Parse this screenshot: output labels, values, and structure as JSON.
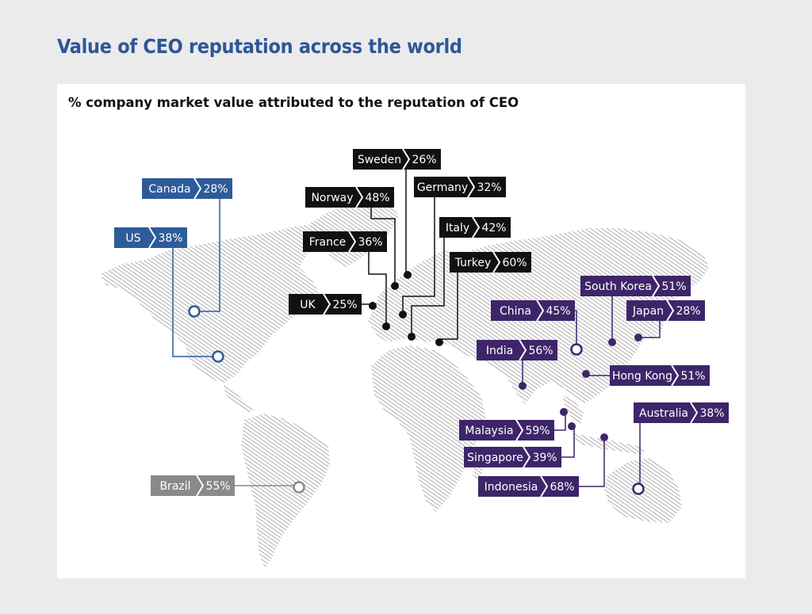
{
  "title": "Value of CEO reputation across the world",
  "subtitle": "% company market value attributed to the reputation of CEO",
  "colors": {
    "americas": "#2e5b9a",
    "europe": "#111111",
    "asia_pacific": "#3e2569",
    "latin_america": "#8a8a8a",
    "land_hatch": "#9a9a9a"
  },
  "countries": [
    {
      "id": "canada",
      "name": "Canada",
      "value": "28%",
      "group": "americas"
    },
    {
      "id": "us",
      "name": "US",
      "value": "38%",
      "group": "americas"
    },
    {
      "id": "brazil",
      "name": "Brazil",
      "value": "55%",
      "group": "latin_america"
    },
    {
      "id": "sweden",
      "name": "Sweden",
      "value": "26%",
      "group": "europe"
    },
    {
      "id": "norway",
      "name": "Norway",
      "value": "48%",
      "group": "europe"
    },
    {
      "id": "germany",
      "name": "Germany",
      "value": "32%",
      "group": "europe"
    },
    {
      "id": "france",
      "name": "France",
      "value": "36%",
      "group": "europe"
    },
    {
      "id": "italy",
      "name": "Italy",
      "value": "42%",
      "group": "europe"
    },
    {
      "id": "turkey",
      "name": "Turkey",
      "value": "60%",
      "group": "europe"
    },
    {
      "id": "uk",
      "name": "UK",
      "value": "25%",
      "group": "europe"
    },
    {
      "id": "south-korea",
      "name": "South Korea",
      "value": "51%",
      "group": "asia_pacific"
    },
    {
      "id": "china",
      "name": "China",
      "value": "45%",
      "group": "asia_pacific"
    },
    {
      "id": "japan",
      "name": "Japan",
      "value": "28%",
      "group": "asia_pacific"
    },
    {
      "id": "india",
      "name": "India",
      "value": "56%",
      "group": "asia_pacific"
    },
    {
      "id": "hong-kong",
      "name": "Hong Kong",
      "value": "51%",
      "group": "asia_pacific"
    },
    {
      "id": "australia",
      "name": "Australia",
      "value": "38%",
      "group": "asia_pacific"
    },
    {
      "id": "malaysia",
      "name": "Malaysia",
      "value": "59%",
      "group": "asia_pacific"
    },
    {
      "id": "singapore",
      "name": "Singapore",
      "value": "39%",
      "group": "asia_pacific"
    },
    {
      "id": "indonesia",
      "name": "Indonesia",
      "value": "68%",
      "group": "asia_pacific"
    }
  ]
}
